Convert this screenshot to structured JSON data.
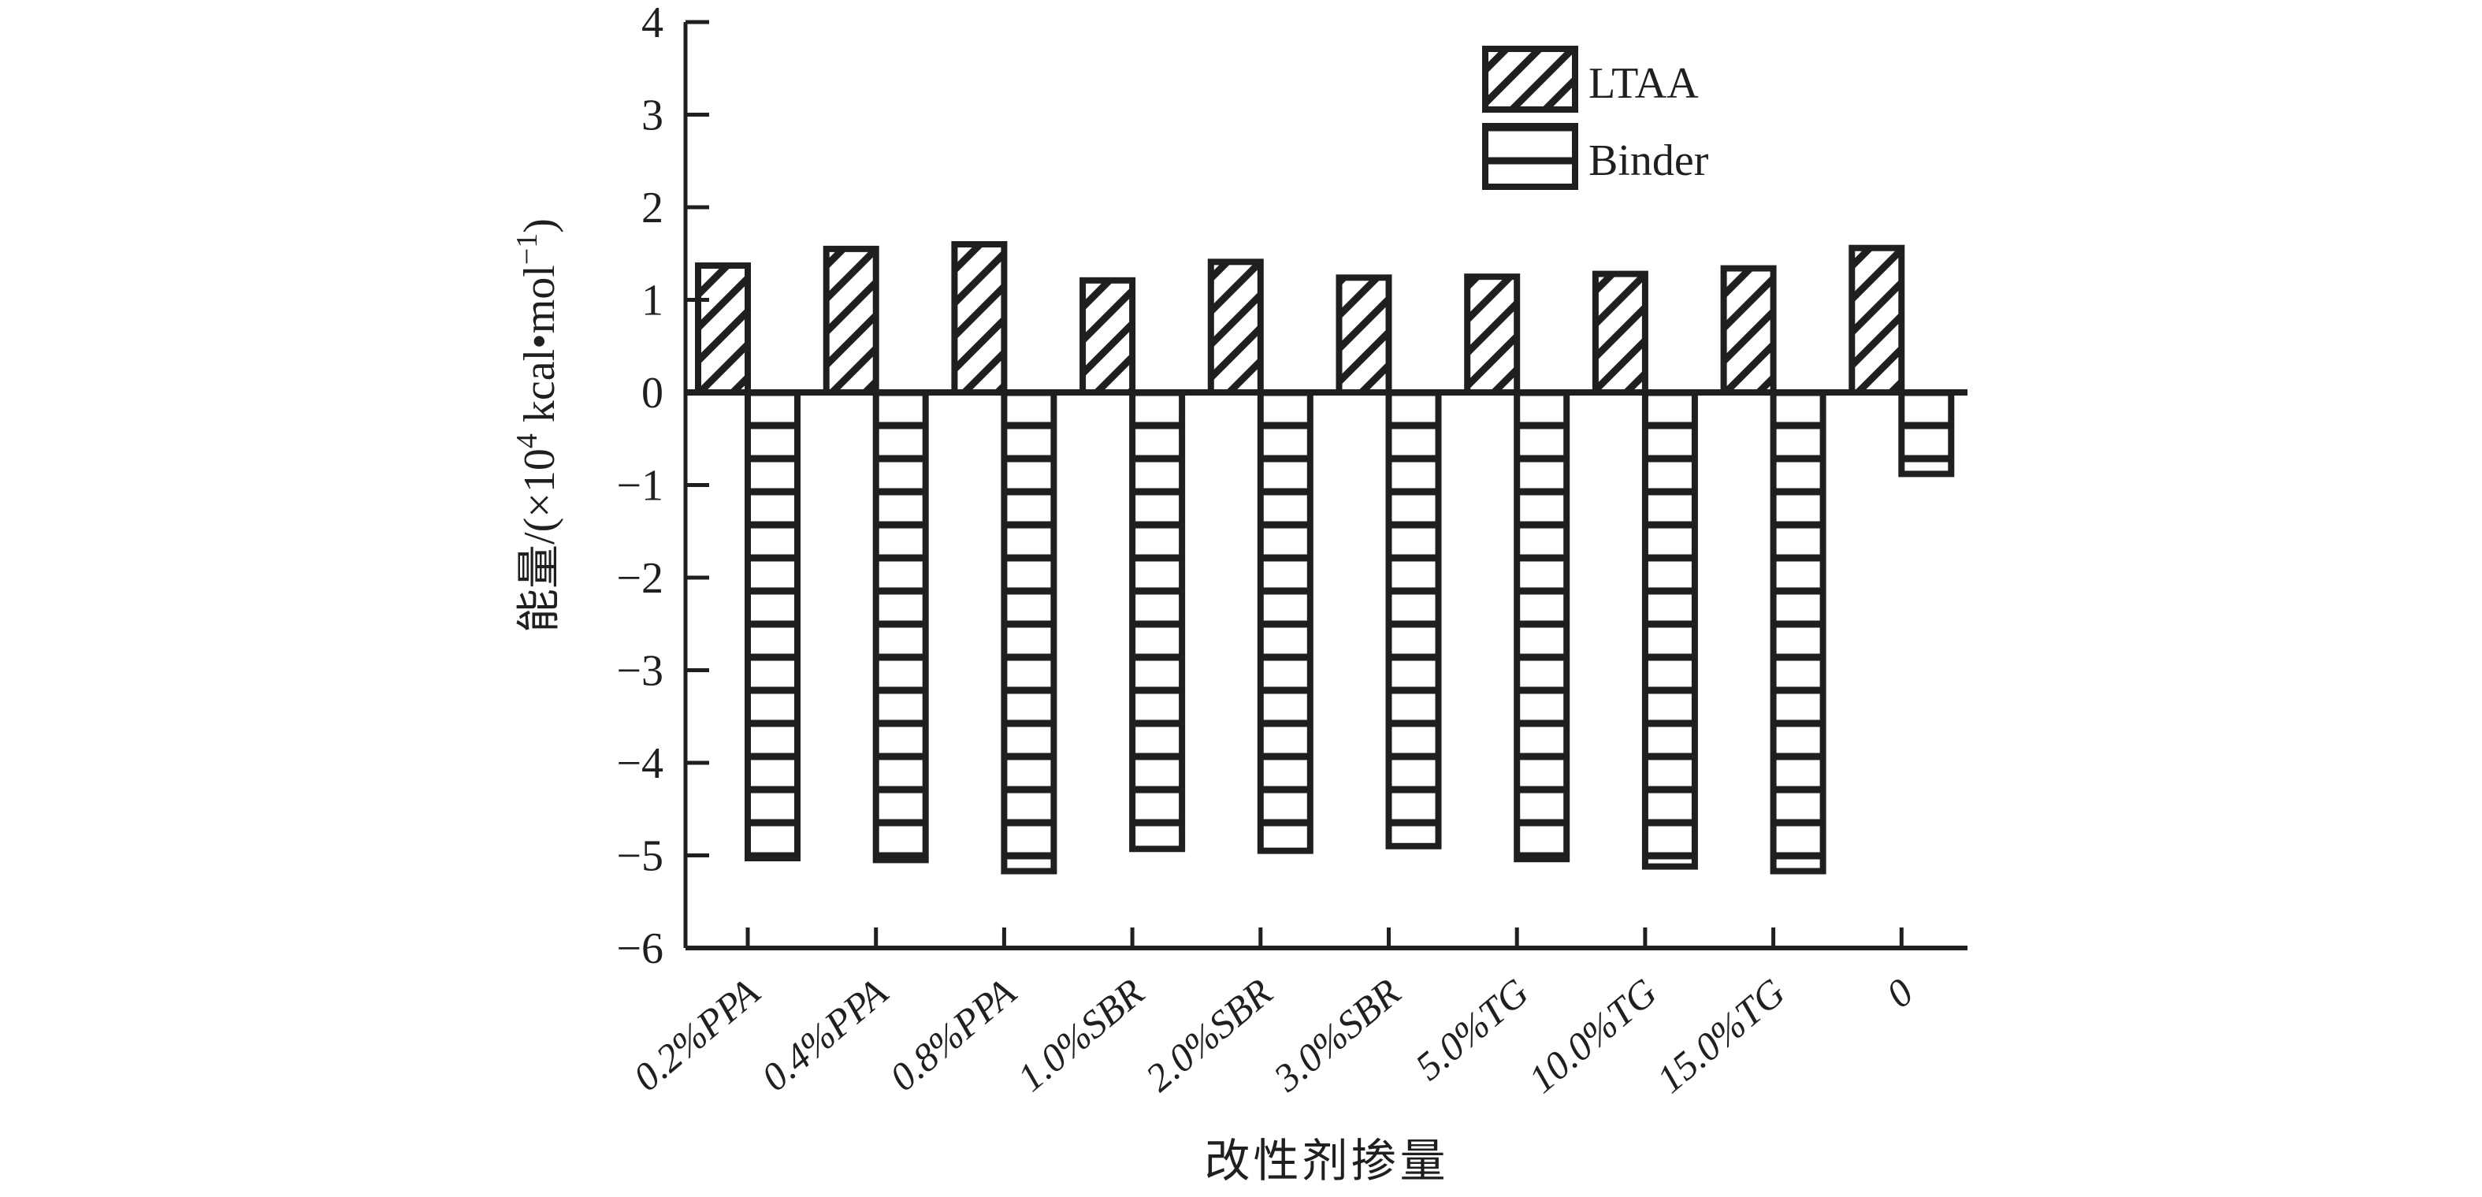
{
  "chart_data": {
    "type": "bar",
    "title": "",
    "categories": [
      "0.2%PPA",
      "0.4%PPA",
      "0.8%PPA",
      "1.0%SBR",
      "2.0%SBR",
      "3.0%SBR",
      "5.0%TG",
      "10.0%TG",
      "15.0%TG",
      "0"
    ],
    "series": [
      {
        "name": "LTAA",
        "hatch": "diagonal",
        "values": [
          1.37,
          1.55,
          1.6,
          1.21,
          1.41,
          1.24,
          1.25,
          1.28,
          1.34,
          1.56
        ]
      },
      {
        "name": "Binder",
        "hatch": "horizontal",
        "values": [
          -5.03,
          -5.05,
          -5.17,
          -4.93,
          -4.95,
          -4.9,
          -5.04,
          -5.12,
          -5.17,
          -0.88
        ]
      }
    ],
    "xlabel": "改性剂掺量",
    "ylabel": "能量/(×10⁴ kcal•mol⁻¹)",
    "ylabel_segments": [
      {
        "t": "能量/(×10"
      },
      {
        "t": "4",
        "sup": true
      },
      {
        "t": " kcal•mol"
      },
      {
        "t": "−1",
        "sup": true
      },
      {
        "t": ")"
      }
    ],
    "ylim": [
      -6,
      4
    ],
    "yticks": [
      4,
      3,
      2,
      1,
      0,
      -1,
      -2,
      -3,
      -4,
      -5,
      -6
    ],
    "grid": false,
    "legend_position": "top-right",
    "bar_fill": "#ffffff",
    "ink_color": "#1f1f1f",
    "background": "#ffffff"
  }
}
